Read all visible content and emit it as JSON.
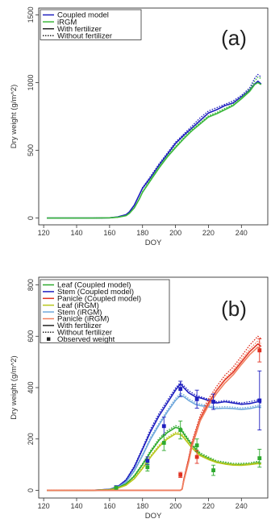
{
  "chart_data": [
    {
      "type": "line",
      "panel_label": "(a)",
      "xlabel": "DOY",
      "ylabel": "Dry weight (g/m^2)",
      "xlim": [
        117,
        256
      ],
      "ylim": [
        -50,
        1550
      ],
      "xticks": [
        120,
        140,
        160,
        180,
        200,
        220,
        240
      ],
      "yticks": [
        0,
        500,
        1000,
        1500
      ],
      "legend": {
        "position": "top-left",
        "entries": [
          {
            "label": "Coupled model",
            "color": "#1f1fbf",
            "style": "solid"
          },
          {
            "label": "iRGM",
            "color": "#3cb83c",
            "style": "solid"
          },
          {
            "label": "With fertilizer",
            "color": "#222222",
            "style": "solid"
          },
          {
            "label": "Without fertilizer",
            "color": "#222222",
            "style": "dotted"
          }
        ]
      },
      "series": [
        {
          "model": "Coupled model",
          "treatment": "With fertilizer",
          "color": "#1f1fbf",
          "style": "solid",
          "x": [
            122,
            150,
            160,
            165,
            170,
            172,
            175,
            178,
            180,
            185,
            190,
            195,
            200,
            205,
            210,
            215,
            220,
            225,
            230,
            235,
            240,
            245,
            248,
            250,
            252
          ],
          "y": [
            0,
            0,
            2,
            8,
            25,
            45,
            95,
            170,
            220,
            300,
            390,
            470,
            550,
            610,
            665,
            720,
            775,
            800,
            830,
            850,
            895,
            945,
            990,
            1010,
            990
          ]
        },
        {
          "model": "Coupled model",
          "treatment": "Without fertilizer",
          "color": "#1f1fbf",
          "style": "dotted",
          "x": [
            122,
            150,
            160,
            165,
            170,
            172,
            175,
            178,
            180,
            185,
            190,
            195,
            200,
            205,
            210,
            215,
            220,
            225,
            230,
            235,
            240,
            245,
            248,
            250,
            252
          ],
          "y": [
            0,
            0,
            2,
            8,
            25,
            45,
            95,
            170,
            225,
            310,
            400,
            480,
            560,
            620,
            680,
            740,
            790,
            815,
            840,
            865,
            905,
            960,
            1030,
            1060,
            1040
          ]
        },
        {
          "model": "iRGM",
          "treatment": "With fertilizer",
          "color": "#3cb83c",
          "style": "solid",
          "x": [
            122,
            150,
            160,
            165,
            170,
            172,
            175,
            178,
            180,
            185,
            190,
            195,
            200,
            205,
            210,
            215,
            220,
            225,
            230,
            235,
            240,
            245,
            248,
            250,
            252
          ],
          "y": [
            0,
            0,
            2,
            6,
            18,
            35,
            75,
            140,
            190,
            280,
            370,
            450,
            520,
            585,
            645,
            695,
            745,
            770,
            800,
            830,
            880,
            935,
            985,
            1000,
            985
          ]
        },
        {
          "model": "iRGM",
          "treatment": "Without fertilizer",
          "color": "#3cb83c",
          "style": "dotted",
          "x": [
            122,
            150,
            160,
            165,
            170,
            172,
            175,
            178,
            180,
            185,
            190,
            195,
            200,
            205,
            210,
            215,
            220,
            225,
            230,
            235,
            240,
            245,
            248,
            250,
            252
          ],
          "y": [
            0,
            0,
            2,
            6,
            18,
            35,
            75,
            140,
            195,
            290,
            380,
            460,
            530,
            595,
            655,
            705,
            755,
            780,
            810,
            840,
            890,
            950,
            1010,
            1040,
            1030
          ]
        }
      ]
    },
    {
      "type": "line",
      "panel_label": "(b)",
      "xlabel": "DOY",
      "ylabel": "Dry weight (g/m^2)",
      "xlim": [
        117,
        256
      ],
      "ylim": [
        -30,
        830
      ],
      "xticks": [
        120,
        140,
        160,
        180,
        200,
        220,
        240
      ],
      "yticks": [
        0,
        200,
        400,
        600,
        800
      ],
      "legend": {
        "position": "top-left",
        "entries": [
          {
            "label": "Leaf (Coupled model)",
            "color": "#2eaa2e",
            "style": "solid"
          },
          {
            "label": "Stem (Coupled model)",
            "color": "#1f1fbf",
            "style": "solid"
          },
          {
            "label": "Panicle (Coupled model)",
            "color": "#e03020",
            "style": "solid"
          },
          {
            "label": "Leaf (iRGM)",
            "color": "#b8c81e",
            "style": "solid"
          },
          {
            "label": "Stem (iRGM)",
            "color": "#6fa8dc",
            "style": "solid"
          },
          {
            "label": "Panicle (iRGM)",
            "color": "#f08060",
            "style": "solid"
          },
          {
            "label": "With fertilizer",
            "color": "#222222",
            "style": "solid"
          },
          {
            "label": "Without fertilizer",
            "color": "#222222",
            "style": "dotted"
          },
          {
            "label": "Observed weight",
            "color": "#222222",
            "style": "square"
          }
        ]
      },
      "series": [
        {
          "organ": "Stem",
          "model": "Coupled model",
          "treatment": "With fertilizer",
          "color": "#1f1fbf",
          "style": "solid",
          "x": [
            122,
            150,
            160,
            165,
            170,
            175,
            180,
            185,
            190,
            195,
            200,
            203,
            205,
            208,
            212,
            215,
            220,
            225,
            230,
            235,
            240,
            245,
            250,
            252
          ],
          "y": [
            0,
            0,
            4,
            15,
            40,
            90,
            160,
            230,
            290,
            340,
            390,
            415,
            400,
            380,
            365,
            360,
            350,
            340,
            345,
            340,
            335,
            338,
            345,
            340
          ]
        },
        {
          "organ": "Stem",
          "model": "Coupled model",
          "treatment": "Without fertilizer",
          "color": "#1f1fbf",
          "style": "dotted",
          "x": [
            122,
            150,
            160,
            165,
            170,
            175,
            180,
            185,
            190,
            195,
            200,
            203,
            205,
            208,
            212,
            215,
            220,
            225,
            230,
            235,
            240,
            245,
            250,
            252
          ],
          "y": [
            0,
            0,
            4,
            15,
            42,
            95,
            165,
            240,
            300,
            350,
            398,
            420,
            408,
            388,
            372,
            365,
            355,
            345,
            350,
            345,
            340,
            345,
            352,
            346
          ]
        },
        {
          "organ": "Stem",
          "model": "iRGM",
          "treatment": "With fertilizer",
          "color": "#6fa8dc",
          "style": "solid",
          "x": [
            122,
            150,
            160,
            165,
            170,
            175,
            180,
            185,
            190,
            195,
            200,
            203,
            205,
            208,
            212,
            215,
            220,
            225,
            230,
            235,
            240,
            245,
            250,
            252
          ],
          "y": [
            0,
            0,
            3,
            12,
            32,
            75,
            135,
            200,
            255,
            305,
            350,
            370,
            365,
            350,
            335,
            330,
            325,
            318,
            320,
            318,
            315,
            318,
            325,
            322
          ]
        },
        {
          "organ": "Stem",
          "model": "iRGM",
          "treatment": "Without fertilizer",
          "color": "#6fa8dc",
          "style": "dotted",
          "x": [
            122,
            150,
            160,
            165,
            170,
            175,
            180,
            185,
            190,
            195,
            200,
            203,
            205,
            208,
            212,
            215,
            220,
            225,
            230,
            235,
            240,
            245,
            250,
            252
          ],
          "y": [
            0,
            0,
            3,
            12,
            34,
            80,
            140,
            208,
            262,
            312,
            358,
            378,
            372,
            357,
            342,
            336,
            330,
            324,
            326,
            324,
            321,
            324,
            331,
            328
          ]
        },
        {
          "organ": "Leaf",
          "model": "Coupled model",
          "treatment": "With fertilizer",
          "color": "#2eaa2e",
          "style": "solid",
          "x": [
            122,
            150,
            160,
            165,
            170,
            175,
            180,
            185,
            190,
            195,
            200,
            203,
            205,
            210,
            215,
            220,
            225,
            230,
            235,
            240,
            245,
            250,
            252
          ],
          "y": [
            0,
            0,
            3,
            10,
            25,
            55,
            100,
            150,
            195,
            225,
            245,
            240,
            220,
            175,
            140,
            125,
            110,
            105,
            100,
            100,
            102,
            108,
            105
          ]
        },
        {
          "organ": "Leaf",
          "model": "Coupled model",
          "treatment": "Without fertilizer",
          "color": "#2eaa2e",
          "style": "dotted",
          "x": [
            122,
            150,
            160,
            165,
            170,
            175,
            180,
            185,
            190,
            195,
            200,
            203,
            205,
            210,
            215,
            220,
            225,
            230,
            235,
            240,
            245,
            250,
            252
          ],
          "y": [
            0,
            0,
            3,
            10,
            26,
            58,
            104,
            156,
            202,
            232,
            252,
            246,
            226,
            181,
            146,
            130,
            115,
            110,
            105,
            105,
            107,
            113,
            110
          ]
        },
        {
          "organ": "Leaf",
          "model": "iRGM",
          "treatment": "With fertilizer",
          "color": "#b8c81e",
          "style": "solid",
          "x": [
            122,
            150,
            160,
            165,
            170,
            175,
            180,
            185,
            190,
            195,
            200,
            203,
            205,
            210,
            215,
            220,
            225,
            230,
            235,
            240,
            245,
            250,
            252
          ],
          "y": [
            0,
            0,
            2,
            8,
            20,
            45,
            85,
            130,
            170,
            200,
            220,
            218,
            205,
            165,
            135,
            120,
            108,
            102,
            98,
            97,
            100,
            104,
            102
          ]
        },
        {
          "organ": "Leaf",
          "model": "iRGM",
          "treatment": "Without fertilizer",
          "color": "#b8c81e",
          "style": "dotted",
          "x": [
            122,
            150,
            160,
            165,
            170,
            175,
            180,
            185,
            190,
            195,
            200,
            203,
            205,
            210,
            215,
            220,
            225,
            230,
            235,
            240,
            245,
            250,
            252
          ],
          "y": [
            0,
            0,
            2,
            8,
            21,
            48,
            89,
            136,
            176,
            206,
            226,
            224,
            211,
            171,
            140,
            125,
            112,
            106,
            102,
            101,
            104,
            108,
            106
          ]
        },
        {
          "organ": "Panicle",
          "model": "Coupled model",
          "treatment": "With fertilizer",
          "color": "#e03020",
          "style": "solid",
          "x": [
            122,
            200,
            203,
            204,
            205,
            208,
            210,
            213,
            215,
            220,
            225,
            230,
            235,
            240,
            245,
            250,
            252
          ],
          "y": [
            0,
            0,
            0,
            5,
            40,
            120,
            180,
            240,
            280,
            340,
            390,
            430,
            460,
            500,
            540,
            570,
            560
          ]
        },
        {
          "organ": "Panicle",
          "model": "Coupled model",
          "treatment": "Without fertilizer",
          "color": "#e03020",
          "style": "dotted",
          "x": [
            122,
            200,
            203,
            204,
            205,
            208,
            210,
            213,
            215,
            220,
            225,
            230,
            235,
            240,
            245,
            250,
            252
          ],
          "y": [
            0,
            0,
            0,
            5,
            42,
            125,
            188,
            250,
            292,
            355,
            405,
            448,
            480,
            522,
            565,
            600,
            590
          ]
        },
        {
          "organ": "Panicle",
          "model": "iRGM",
          "treatment": "With fertilizer",
          "color": "#f08060",
          "style": "solid",
          "x": [
            122,
            200,
            203,
            204,
            205,
            208,
            210,
            213,
            215,
            220,
            225,
            230,
            235,
            240,
            245,
            250,
            252
          ],
          "y": [
            0,
            0,
            0,
            4,
            35,
            110,
            170,
            230,
            270,
            330,
            378,
            418,
            450,
            490,
            528,
            558,
            550
          ]
        },
        {
          "organ": "Panicle",
          "model": "iRGM",
          "treatment": "Without fertilizer",
          "color": "#f08060",
          "style": "dotted",
          "x": [
            122,
            200,
            203,
            204,
            205,
            208,
            210,
            213,
            215,
            220,
            225,
            230,
            235,
            240,
            245,
            250,
            252
          ],
          "y": [
            0,
            0,
            0,
            4,
            37,
            115,
            178,
            240,
            282,
            345,
            393,
            435,
            468,
            510,
            550,
            582,
            572
          ]
        }
      ],
      "observed": [
        {
          "organ": "Stem",
          "color": "#1f1fbf",
          "x": [
            164,
            183,
            193,
            203,
            213,
            223,
            251
          ],
          "y": [
            12,
            115,
            250,
            395,
            355,
            345,
            350
          ],
          "err": [
            3,
            15,
            35,
            30,
            35,
            30,
            115
          ]
        },
        {
          "organ": "Leaf",
          "color": "#2eaa2e",
          "x": [
            164,
            183,
            193,
            203,
            213,
            223,
            251
          ],
          "y": [
            10,
            90,
            185,
            235,
            175,
            78,
            125
          ],
          "err": [
            3,
            15,
            30,
            35,
            25,
            20,
            35
          ]
        },
        {
          "organ": "Panicle",
          "color": "#e03020",
          "x": [
            203,
            213,
            251
          ],
          "y": [
            60,
            130,
            545
          ],
          "err": [
            10,
            25,
            45
          ]
        }
      ]
    }
  ]
}
